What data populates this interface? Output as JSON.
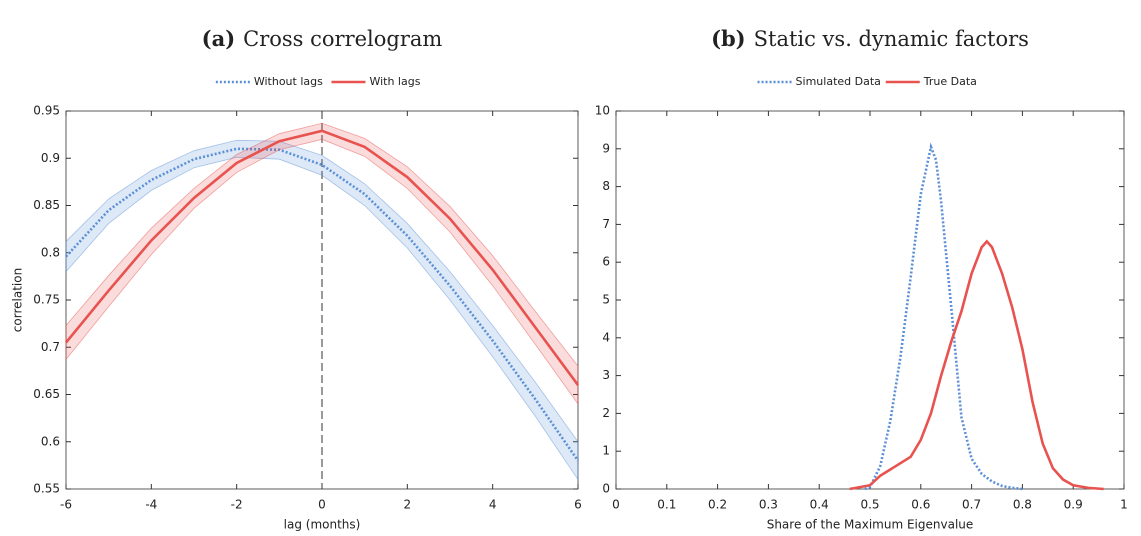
{
  "chart_data": [
    {
      "type": "line",
      "panel_label": "(a)",
      "title": "Cross correlogram",
      "xlabel": "lag (months)",
      "ylabel": "correlation",
      "x": [
        -6,
        -5,
        -4,
        -3,
        -2,
        -1,
        0,
        1,
        2,
        3,
        4,
        5,
        6
      ],
      "xlim": [
        -6,
        6
      ],
      "xticks": [
        -6,
        -4,
        -2,
        0,
        2,
        4,
        6
      ],
      "ylim": [
        0.55,
        0.95
      ],
      "yticks": [
        0.55,
        0.6,
        0.65,
        0.7,
        0.75,
        0.8,
        0.85,
        0.9,
        0.95
      ],
      "reference_line_x": 0,
      "legend": "top",
      "series": [
        {
          "name": "Without lags",
          "color": "#5b8fd6",
          "line_style": "dotted",
          "values": [
            0.796,
            0.845,
            0.877,
            0.899,
            0.91,
            0.909,
            0.893,
            0.862,
            0.818,
            0.765,
            0.707,
            0.645,
            0.58
          ],
          "upper": [
            0.812,
            0.857,
            0.887,
            0.908,
            0.919,
            0.918,
            0.903,
            0.873,
            0.831,
            0.78,
            0.723,
            0.663,
            0.6
          ],
          "lower": [
            0.78,
            0.831,
            0.866,
            0.89,
            0.901,
            0.899,
            0.882,
            0.85,
            0.805,
            0.75,
            0.69,
            0.627,
            0.56
          ]
        },
        {
          "name": "With lags",
          "color": "#e8524f",
          "line_style": "solid",
          "values": [
            0.705,
            0.76,
            0.813,
            0.858,
            0.895,
            0.918,
            0.929,
            0.912,
            0.88,
            0.836,
            0.782,
            0.721,
            0.66
          ],
          "upper": [
            0.723,
            0.776,
            0.826,
            0.868,
            0.904,
            0.926,
            0.937,
            0.921,
            0.891,
            0.849,
            0.797,
            0.738,
            0.68
          ],
          "lower": [
            0.687,
            0.743,
            0.798,
            0.847,
            0.885,
            0.909,
            0.92,
            0.902,
            0.868,
            0.822,
            0.765,
            0.703,
            0.64
          ]
        }
      ]
    },
    {
      "type": "line",
      "panel_label": "(b)",
      "title": "Static vs. dynamic factors",
      "xlabel": "Share of the Maximum Eigenvalue",
      "xlim": [
        0,
        1
      ],
      "xticks": [
        0,
        0.1,
        0.2,
        0.3,
        0.4,
        0.5,
        0.6,
        0.7,
        0.8,
        0.9,
        1
      ],
      "ylim": [
        0,
        10
      ],
      "yticks": [
        0,
        1,
        2,
        3,
        4,
        5,
        6,
        7,
        8,
        9,
        10
      ],
      "legend": "top",
      "series": [
        {
          "name": "Simulated Data",
          "color": "#5b8fd6",
          "line_style": "dotted",
          "x": [
            0.49,
            0.5,
            0.52,
            0.54,
            0.56,
            0.58,
            0.6,
            0.62,
            0.63,
            0.64,
            0.66,
            0.68,
            0.7,
            0.72,
            0.74,
            0.76,
            0.78,
            0.8
          ],
          "values": [
            0,
            0.05,
            0.6,
            1.8,
            3.5,
            5.6,
            7.8,
            9.05,
            8.7,
            7.6,
            4.8,
            1.9,
            0.8,
            0.4,
            0.2,
            0.08,
            0.03,
            0
          ]
        },
        {
          "name": "True Data",
          "color": "#e8524f",
          "line_style": "solid",
          "x": [
            0.46,
            0.5,
            0.52,
            0.55,
            0.58,
            0.6,
            0.62,
            0.64,
            0.66,
            0.68,
            0.7,
            0.72,
            0.73,
            0.74,
            0.76,
            0.78,
            0.8,
            0.82,
            0.84,
            0.86,
            0.88,
            0.9,
            0.93,
            0.96
          ],
          "values": [
            0,
            0.1,
            0.35,
            0.6,
            0.85,
            1.3,
            2.0,
            3.0,
            3.9,
            4.7,
            5.7,
            6.4,
            6.55,
            6.4,
            5.7,
            4.8,
            3.7,
            2.3,
            1.2,
            0.55,
            0.25,
            0.1,
            0.03,
            0
          ]
        }
      ]
    }
  ]
}
